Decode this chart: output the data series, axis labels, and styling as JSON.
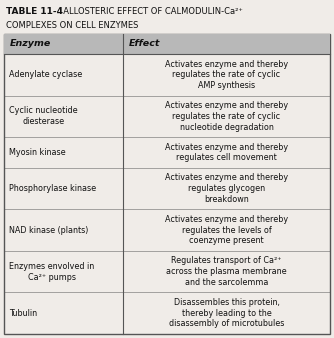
{
  "title_bold": "TABLE 11-4",
  "title_rest": "  ALLOSTERIC EFFECT OF CALMODULIN-Ca²⁺",
  "title_line2": "COMPLEXES ON CELL ENZYMES",
  "col_headers": [
    "Enzyme",
    "Effect"
  ],
  "rows": [
    {
      "enzyme": "Adenylate cyclase",
      "effect": "Activates enzyme and thereby\nregulates the rate of cyclic\nAMP synthesis",
      "e_lines": 1,
      "eff_lines": 3
    },
    {
      "enzyme": "Cyclic nucleotide\ndiesterase",
      "effect": "Activates enzyme and thereby\nregulates the rate of cyclic\nnucleotide degradation",
      "e_lines": 2,
      "eff_lines": 3
    },
    {
      "enzyme": "Myosin kinase",
      "effect": "Activates enzyme and thereby\nregulates cell movement",
      "e_lines": 1,
      "eff_lines": 2
    },
    {
      "enzyme": "Phosphorylase kinase",
      "effect": "Activates enzyme and thereby\nregulates glycogen\nbreakdown",
      "e_lines": 1,
      "eff_lines": 3
    },
    {
      "enzyme": "NAD kinase (plants)",
      "effect": "Activates enzyme and thereby\nregulates the levels of\ncoenzyme present",
      "e_lines": 1,
      "eff_lines": 3
    },
    {
      "enzyme": "Enzymes envolved in\nCa²⁺ pumps",
      "effect": "Regulates transport of Ca²⁺\nacross the plasma membrane\nand the sarcolemma",
      "e_lines": 2,
      "eff_lines": 3
    },
    {
      "enzyme": "Tubulin",
      "effect": "Disassembles this protein,\nthereby leading to the\ndisassembly of microtubules",
      "e_lines": 1,
      "eff_lines": 3
    }
  ],
  "header_bg": "#b8b8b8",
  "border_color": "#555555",
  "text_color": "#111111",
  "title_color": "#111111",
  "col_split": 0.365,
  "fig_bg": "#f0ece8",
  "table_bg": "#f0ece8",
  "font_size": 5.8,
  "header_font_size": 6.8
}
